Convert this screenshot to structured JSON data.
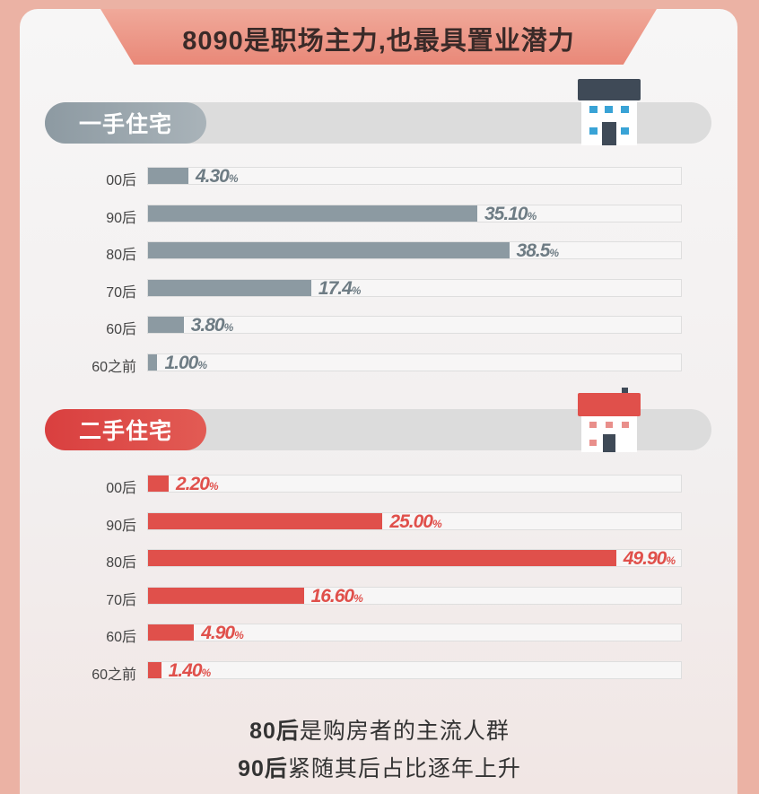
{
  "title": "8090是职场主力,也最具置业潜力",
  "colors": {
    "new": "#8c9aa2",
    "resale": "#e0504b"
  },
  "chart_data": [
    {
      "type": "bar",
      "title": "一手住宅",
      "unit": "%",
      "categories": [
        "00后",
        "90后",
        "80后",
        "70后",
        "60后",
        "60之前"
      ],
      "values": [
        4.3,
        35.1,
        38.5,
        17.4,
        3.8,
        1.0
      ],
      "value_labels": [
        "4.30",
        "35.10",
        "38.5",
        "17.4",
        "3.80",
        "1.00"
      ],
      "xlim": [
        0,
        57
      ]
    },
    {
      "type": "bar",
      "title": "二手住宅",
      "unit": "%",
      "categories": [
        "00后",
        "90后",
        "80后",
        "70后",
        "60后",
        "60之前"
      ],
      "values": [
        2.2,
        25.0,
        49.9,
        16.6,
        4.9,
        1.4
      ],
      "value_labels": [
        "2.20",
        "25.00",
        "49.90",
        "16.60",
        "4.90",
        "1.40"
      ],
      "xlim": [
        0,
        57
      ]
    }
  ],
  "footer": {
    "line1_strong": "80后",
    "line1_rest": "是购房者的主流人群",
    "line2_strong": "90后",
    "line2_rest": "紧随其后占比逐年上升"
  }
}
